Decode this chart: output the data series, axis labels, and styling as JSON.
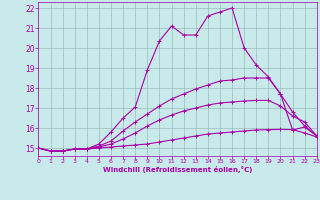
{
  "xlabel": "Windchill (Refroidissement éolien,°C)",
  "bg_color": "#c8eaea",
  "line_color": "#aa00aa",
  "grid_color": "#99bbbb",
  "xlim": [
    0,
    23
  ],
  "ylim": [
    14.6,
    22.3
  ],
  "xticks": [
    0,
    1,
    2,
    3,
    4,
    5,
    6,
    7,
    8,
    9,
    10,
    11,
    12,
    13,
    14,
    15,
    16,
    17,
    18,
    19,
    20,
    21,
    22,
    23
  ],
  "yticks": [
    15,
    16,
    17,
    18,
    19,
    20,
    21,
    22
  ],
  "line1_x": [
    0,
    1,
    2,
    3,
    4,
    5,
    6,
    7,
    8,
    9,
    10,
    11,
    12,
    13,
    14,
    15,
    16,
    17,
    18,
    19,
    20,
    21,
    22,
    23
  ],
  "line1_y": [
    15.0,
    14.85,
    14.85,
    14.95,
    14.95,
    15.0,
    15.05,
    15.1,
    15.15,
    15.2,
    15.3,
    15.4,
    15.5,
    15.6,
    15.7,
    15.75,
    15.8,
    15.85,
    15.9,
    15.92,
    15.93,
    15.92,
    15.75,
    15.55
  ],
  "line2_x": [
    0,
    1,
    2,
    3,
    4,
    5,
    6,
    7,
    8,
    9,
    10,
    11,
    12,
    13,
    14,
    15,
    16,
    17,
    18,
    19,
    20,
    21,
    22,
    23
  ],
  "line2_y": [
    15.0,
    14.85,
    14.85,
    14.95,
    14.95,
    15.05,
    15.2,
    15.45,
    15.75,
    16.1,
    16.4,
    16.65,
    16.85,
    17.0,
    17.15,
    17.25,
    17.3,
    17.35,
    17.38,
    17.38,
    17.1,
    16.6,
    16.3,
    15.6
  ],
  "line3_x": [
    0,
    1,
    2,
    3,
    4,
    5,
    6,
    7,
    8,
    9,
    10,
    11,
    12,
    13,
    14,
    15,
    16,
    17,
    18,
    19,
    20,
    21,
    22,
    23
  ],
  "line3_y": [
    15.0,
    14.85,
    14.85,
    14.95,
    14.95,
    15.1,
    15.35,
    15.85,
    16.3,
    16.7,
    17.1,
    17.45,
    17.7,
    17.95,
    18.15,
    18.35,
    18.4,
    18.5,
    18.5,
    18.5,
    17.7,
    16.8,
    16.1,
    15.6
  ],
  "line4_x": [
    0,
    1,
    2,
    3,
    4,
    5,
    6,
    7,
    8,
    9,
    10,
    11,
    12,
    13,
    14,
    15,
    16,
    17,
    18,
    19,
    20,
    21,
    22,
    23
  ],
  "line4_y": [
    15.0,
    14.85,
    14.85,
    14.95,
    14.95,
    15.2,
    15.8,
    16.5,
    17.05,
    18.9,
    20.35,
    21.1,
    20.65,
    20.65,
    21.6,
    21.8,
    22.0,
    20.0,
    19.15,
    18.55,
    17.7,
    15.9,
    16.05,
    15.6
  ]
}
